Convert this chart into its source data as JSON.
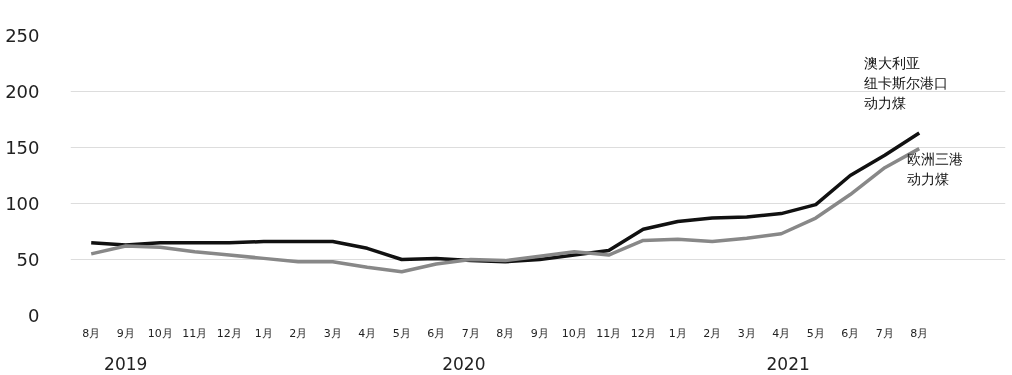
{
  "chart_data": {
    "type": "line",
    "categories": [
      "8月",
      "9月",
      "10月",
      "11月",
      "12月",
      "1月",
      "2月",
      "3月",
      "4月",
      "5月",
      "6月",
      "7月",
      "8月",
      "9月",
      "10月",
      "11月",
      "12月",
      "1月",
      "2月",
      "3月",
      "4月",
      "5月",
      "6月",
      "7月",
      "8月"
    ],
    "series": [
      {
        "name": "澳大利亚纽卡斯尔港口动力煤",
        "color": "#111111",
        "values": [
          65,
          63,
          65,
          65,
          65,
          66,
          66,
          66,
          60,
          50,
          51,
          49,
          48,
          50,
          54,
          58,
          77,
          84,
          87,
          88,
          91,
          99,
          125,
          143,
          163
        ]
      },
      {
        "name": "欧洲三港动力煤",
        "color": "#888888",
        "values": [
          55,
          62,
          61,
          57,
          54,
          51,
          48,
          48,
          43,
          39,
          46,
          50,
          49,
          53,
          57,
          54,
          67,
          68,
          66,
          69,
          73,
          87,
          108,
          132,
          149
        ]
      }
    ],
    "annotations": [
      "2019",
      "2020",
      "2021"
    ],
    "ylim": [
      0,
      250
    ],
    "yticks": [
      0,
      50,
      100,
      150,
      200,
      250
    ],
    "grid": "y",
    "marker": "none",
    "line_style": "solid"
  }
}
